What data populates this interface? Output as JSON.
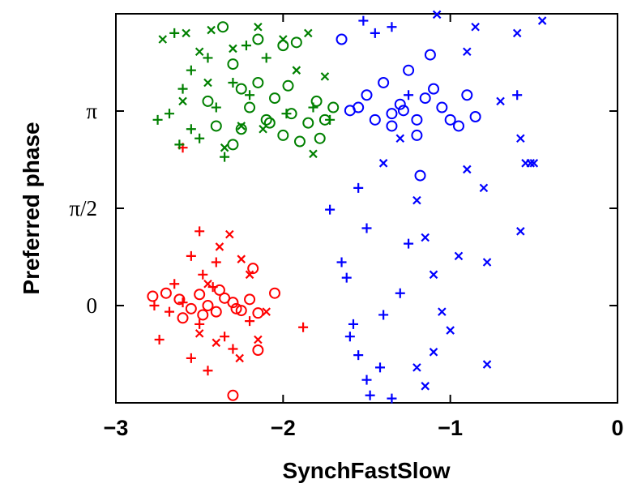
{
  "chart_data": {
    "type": "scatter",
    "x_label": "SynchFastSlow",
    "y_label": "Preferred phase",
    "xlim": [
      -3,
      0
    ],
    "xticks": [
      {
        "value": -3,
        "label": "−3"
      },
      {
        "value": -2,
        "label": "−2"
      },
      {
        "value": -1,
        "label": "−1"
      },
      0
    ],
    "ylim": [
      -1.5708,
      4.7124
    ],
    "yticks": [
      0,
      {
        "value": 1.5708,
        "label": "π/2"
      },
      {
        "value": 3.1416,
        "label": "π"
      }
    ],
    "series": [
      {
        "color": "#ff0000",
        "marker": "circle",
        "x": [
          -2.78,
          -2.7,
          -2.62,
          -2.55,
          -2.5,
          -2.45,
          -2.4,
          -2.35,
          -2.3,
          -2.25,
          -2.2,
          -2.15,
          -2.18,
          -2.05,
          -2.3,
          -2.15,
          -2.48,
          -2.38,
          -2.6,
          -2.28
        ],
        "y": [
          0.15,
          0.2,
          0.1,
          -0.05,
          0.18,
          0.0,
          -0.1,
          0.12,
          0.05,
          -0.08,
          0.1,
          -0.12,
          0.6,
          0.2,
          -1.45,
          -0.72,
          -0.15,
          0.25,
          -0.2,
          -0.05
        ]
      },
      {
        "color": "#ff0000",
        "marker": "plus",
        "x": [
          -2.77,
          -2.74,
          -2.68,
          -2.6,
          -2.55,
          -2.5,
          -2.48,
          -2.42,
          -2.35,
          -2.45,
          -2.55,
          -2.3,
          -2.2,
          -2.6,
          -2.5,
          -1.88,
          -2.4,
          -2.65
        ],
        "y": [
          0.0,
          -0.55,
          -0.1,
          0.05,
          0.8,
          -0.3,
          0.5,
          0.3,
          -0.5,
          -1.05,
          -0.85,
          -0.7,
          -0.25,
          2.55,
          1.2,
          -0.35,
          0.7,
          0.35
        ]
      },
      {
        "color": "#ff0000",
        "marker": "cross",
        "x": [
          -2.25,
          -2.32,
          -2.2,
          -2.1,
          -2.4,
          -2.5,
          -2.26,
          -2.15,
          -2.38,
          -2.45
        ],
        "y": [
          0.75,
          1.15,
          0.5,
          -0.1,
          -0.6,
          -0.45,
          -0.85,
          -0.55,
          0.95,
          0.35
        ]
      },
      {
        "color": "#008000",
        "marker": "circle",
        "x": [
          -2.36,
          -2.15,
          -2.0,
          -1.92,
          -2.3,
          -2.25,
          -2.2,
          -2.1,
          -2.05,
          -1.95,
          -1.85,
          -1.8,
          -1.75,
          -1.7,
          -2.4,
          -2.3,
          -2.45,
          -2.0,
          -1.9,
          -2.15,
          -2.25,
          -1.78,
          -2.08,
          -1.97
        ],
        "y": [
          4.5,
          4.3,
          4.2,
          4.25,
          3.9,
          3.5,
          3.2,
          3.0,
          3.35,
          3.1,
          2.95,
          3.3,
          3.0,
          3.2,
          2.9,
          2.6,
          3.3,
          2.75,
          2.65,
          3.6,
          2.85,
          2.7,
          2.95,
          3.55
        ]
      },
      {
        "color": "#008000",
        "marker": "plus",
        "x": [
          -2.75,
          -2.68,
          -2.65,
          -2.6,
          -2.55,
          -2.5,
          -2.45,
          -2.4,
          -2.35,
          -2.3,
          -2.2,
          -2.1,
          -1.98,
          -1.82,
          -1.72,
          -2.55,
          -2.62,
          -2.22
        ],
        "y": [
          3.0,
          3.1,
          4.4,
          3.5,
          3.8,
          2.7,
          4.0,
          3.2,
          2.4,
          3.6,
          3.4,
          4.0,
          3.1,
          3.2,
          3.0,
          2.85,
          2.6,
          4.2
        ]
      },
      {
        "color": "#008000",
        "marker": "cross",
        "x": [
          -2.72,
          -2.58,
          -2.5,
          -2.43,
          -2.3,
          -2.15,
          -2.0,
          -1.85,
          -1.82,
          -2.35,
          -2.25,
          -1.92,
          -1.75,
          -2.45,
          -2.6,
          -2.12
        ],
        "y": [
          4.3,
          4.4,
          4.1,
          4.45,
          4.15,
          4.5,
          4.3,
          4.4,
          2.45,
          2.55,
          2.9,
          3.8,
          3.7,
          3.6,
          3.3,
          2.85
        ]
      },
      {
        "color": "#0000ff",
        "marker": "circle",
        "x": [
          -1.65,
          -1.55,
          -1.5,
          -1.45,
          -1.4,
          -1.35,
          -1.3,
          -1.25,
          -1.2,
          -1.15,
          -1.1,
          -1.05,
          -1.0,
          -0.95,
          -0.9,
          -0.85,
          -1.18,
          -1.2,
          -1.12,
          -1.35,
          -1.6,
          -1.28
        ],
        "y": [
          4.3,
          3.2,
          3.4,
          3.0,
          3.6,
          3.1,
          3.25,
          3.8,
          3.0,
          3.35,
          3.5,
          3.2,
          3.0,
          2.9,
          3.4,
          3.05,
          2.1,
          2.75,
          4.05,
          2.9,
          3.15,
          3.15
        ]
      },
      {
        "color": "#0000ff",
        "marker": "plus",
        "x": [
          -1.72,
          -1.65,
          -1.62,
          -1.6,
          -1.55,
          -1.5,
          -1.48,
          -1.42,
          -1.4,
          -1.35,
          -1.3,
          -1.25,
          -1.55,
          -1.52,
          -1.45,
          -1.35,
          -1.25,
          -1.5,
          -1.58,
          -0.6
        ],
        "y": [
          1.55,
          0.7,
          0.45,
          -0.5,
          -0.8,
          -1.2,
          -1.45,
          -1.0,
          -0.15,
          -1.5,
          0.2,
          1.0,
          1.9,
          4.6,
          4.4,
          4.5,
          3.4,
          1.25,
          -0.3,
          3.4
        ]
      },
      {
        "color": "#0000ff",
        "marker": "cross",
        "x": [
          -1.4,
          -1.3,
          -1.2,
          -1.15,
          -1.1,
          -1.05,
          -1.0,
          -1.1,
          -1.2,
          -1.15,
          -0.95,
          -0.9,
          -0.8,
          -0.78,
          -0.7,
          -0.6,
          -0.58,
          -0.55,
          -0.52,
          -0.5,
          -0.45,
          -0.58,
          -0.78,
          -1.08,
          -0.9,
          -0.85
        ],
        "y": [
          2.3,
          2.7,
          1.7,
          1.1,
          0.5,
          -0.1,
          -0.4,
          -0.75,
          -1.0,
          -1.3,
          0.8,
          2.2,
          1.9,
          -0.95,
          3.3,
          4.4,
          2.7,
          2.3,
          2.3,
          2.3,
          4.6,
          1.2,
          0.7,
          4.7,
          4.1,
          4.5
        ]
      }
    ]
  }
}
